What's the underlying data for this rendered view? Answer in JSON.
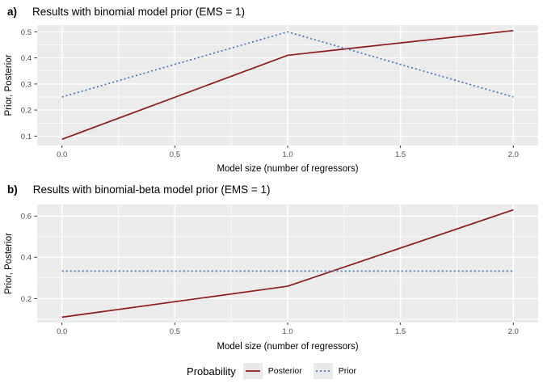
{
  "colors": {
    "posterior": "#8e1b1b",
    "prior": "#4674b8",
    "panel_bg": "#ebebeb",
    "grid": "#ffffff",
    "tick_mark": "#333333",
    "tick_label": "#4d4d4d",
    "key_bg": "#e9e9e9"
  },
  "legend": {
    "title": "Probability",
    "entries": [
      {
        "label": "Posterior",
        "color_key": "posterior",
        "linetype": "solid"
      },
      {
        "label": "Prior",
        "color_key": "prior",
        "linetype": "dotted"
      }
    ],
    "position": "bottom"
  },
  "chart_data": [
    {
      "type": "line",
      "tag": "a)",
      "title": "Results with binomial model prior (EMS = 1)",
      "xlabel": "Model size (number of regressors)",
      "ylabel": "Prior, Posterior",
      "x": [
        0,
        1,
        2
      ],
      "series": [
        {
          "name": "Posterior",
          "color_key": "posterior",
          "linetype": "solid",
          "values": [
            0.088,
            0.41,
            0.505
          ]
        },
        {
          "name": "Prior",
          "color_key": "prior",
          "linetype": "dotted",
          "values": [
            0.25,
            0.5,
            0.25
          ]
        }
      ],
      "xlim": [
        -0.11,
        2.11
      ],
      "ylim": [
        0.064,
        0.526
      ],
      "x_ticks": [
        0.0,
        0.5,
        1.0,
        1.5,
        2.0
      ],
      "x_tick_labels": [
        "0.0",
        "0.5",
        "1.0",
        "1.5",
        "2.0"
      ],
      "y_ticks": [
        0.1,
        0.2,
        0.3,
        0.4,
        0.5
      ],
      "y_tick_labels": [
        "0.1",
        "0.2",
        "0.3",
        "0.4",
        "0.5"
      ],
      "x_minor": [
        0.25,
        0.75,
        1.25,
        1.75
      ],
      "y_minor": [
        0.15,
        0.25,
        0.35,
        0.45
      ],
      "grid": true
    },
    {
      "type": "line",
      "tag": "b)",
      "title": "Results with binomial-beta model prior (EMS = 1)",
      "xlabel": "Model size (number of regressors)",
      "ylabel": "Prior, Posterior",
      "x": [
        0,
        1,
        2
      ],
      "series": [
        {
          "name": "Posterior",
          "color_key": "posterior",
          "linetype": "solid",
          "values": [
            0.11,
            0.26,
            0.63
          ]
        },
        {
          "name": "Prior",
          "color_key": "prior",
          "linetype": "dotted",
          "values": [
            0.333,
            0.333,
            0.333
          ]
        }
      ],
      "xlim": [
        -0.11,
        2.11
      ],
      "ylim": [
        0.084,
        0.656
      ],
      "x_ticks": [
        0.0,
        0.5,
        1.0,
        1.5,
        2.0
      ],
      "x_tick_labels": [
        "0.0",
        "0.5",
        "1.0",
        "1.5",
        "2.0"
      ],
      "y_ticks": [
        0.2,
        0.4,
        0.6
      ],
      "y_tick_labels": [
        "0.2",
        "0.4",
        "0.6"
      ],
      "y_minor": [
        0.1,
        0.3,
        0.5
      ],
      "x_minor": [
        0.25,
        0.75,
        1.25,
        1.75
      ],
      "grid": true
    }
  ]
}
